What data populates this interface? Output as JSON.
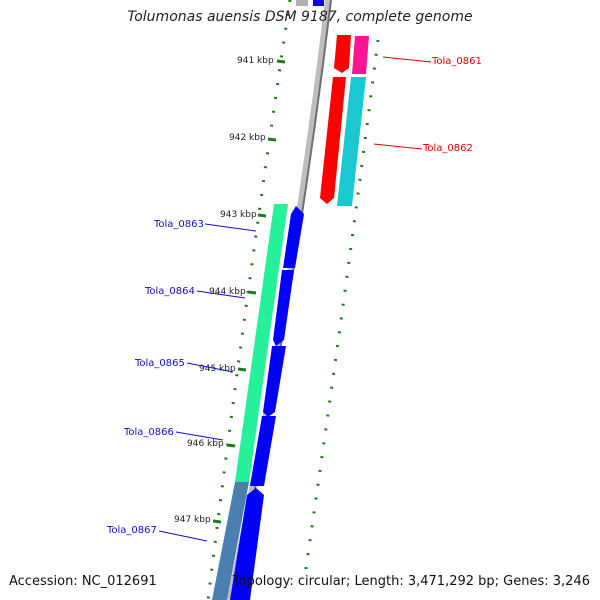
{
  "title": "Tolumonas auensis DSM 9187, complete genome",
  "footer": {
    "accession": "Accession: NC_012691",
    "summary": "Topology: circular; Length: 3,471,292 bp; Genes: 3,246"
  },
  "colors": {
    "background": "#ffffff",
    "backbone": "#808080",
    "tick": "#1f7a1f",
    "gene_red": "#ff0000",
    "gene_magenta": "#ff1493",
    "gene_cyan": "#19c8d0",
    "gene_seagreen": "#27f09a",
    "gene_blue": "#0000ff",
    "gene_steelblue": "#4a7fb0",
    "label_red": "#e00000",
    "label_blue": "#1010c0"
  },
  "ticks": [
    "941 kbp",
    "942 kbp",
    "943 kbp",
    "944 kbp",
    "945 kbp",
    "946 kbp",
    "947 kbp"
  ],
  "gene_labels": [
    {
      "id": "Tola_0861",
      "color": "#e00000"
    },
    {
      "id": "Tola_0862",
      "color": "#e00000"
    },
    {
      "id": "Tola_0863",
      "color": "#1010c0"
    },
    {
      "id": "Tola_0864",
      "color": "#1010c0"
    },
    {
      "id": "Tola_0865",
      "color": "#1010c0"
    },
    {
      "id": "Tola_0866",
      "color": "#1010c0"
    },
    {
      "id": "Tola_0867",
      "color": "#1010c0"
    }
  ]
}
